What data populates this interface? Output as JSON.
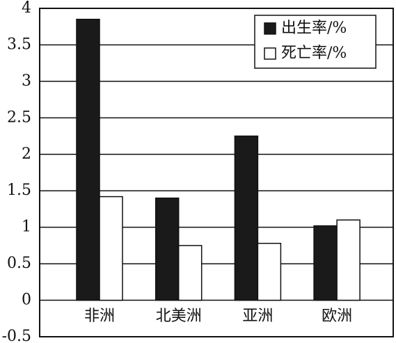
{
  "chart_data": {
    "type": "bar",
    "categories": [
      "非洲",
      "北美洲",
      "亚洲",
      "欧洲"
    ],
    "series": [
      {
        "name": "出生率/%",
        "color": "#1a1a1a",
        "values": [
          3.85,
          1.4,
          2.25,
          1.02
        ]
      },
      {
        "name": "死亡率/%",
        "color": "#ffffff",
        "values": [
          1.42,
          0.75,
          0.78,
          1.1
        ]
      }
    ],
    "ylim": [
      -0.5,
      4
    ],
    "yticks": [
      -0.5,
      0,
      0.5,
      1,
      1.5,
      2,
      2.5,
      3,
      3.5,
      4
    ],
    "grid": true,
    "legend": "top-right"
  }
}
